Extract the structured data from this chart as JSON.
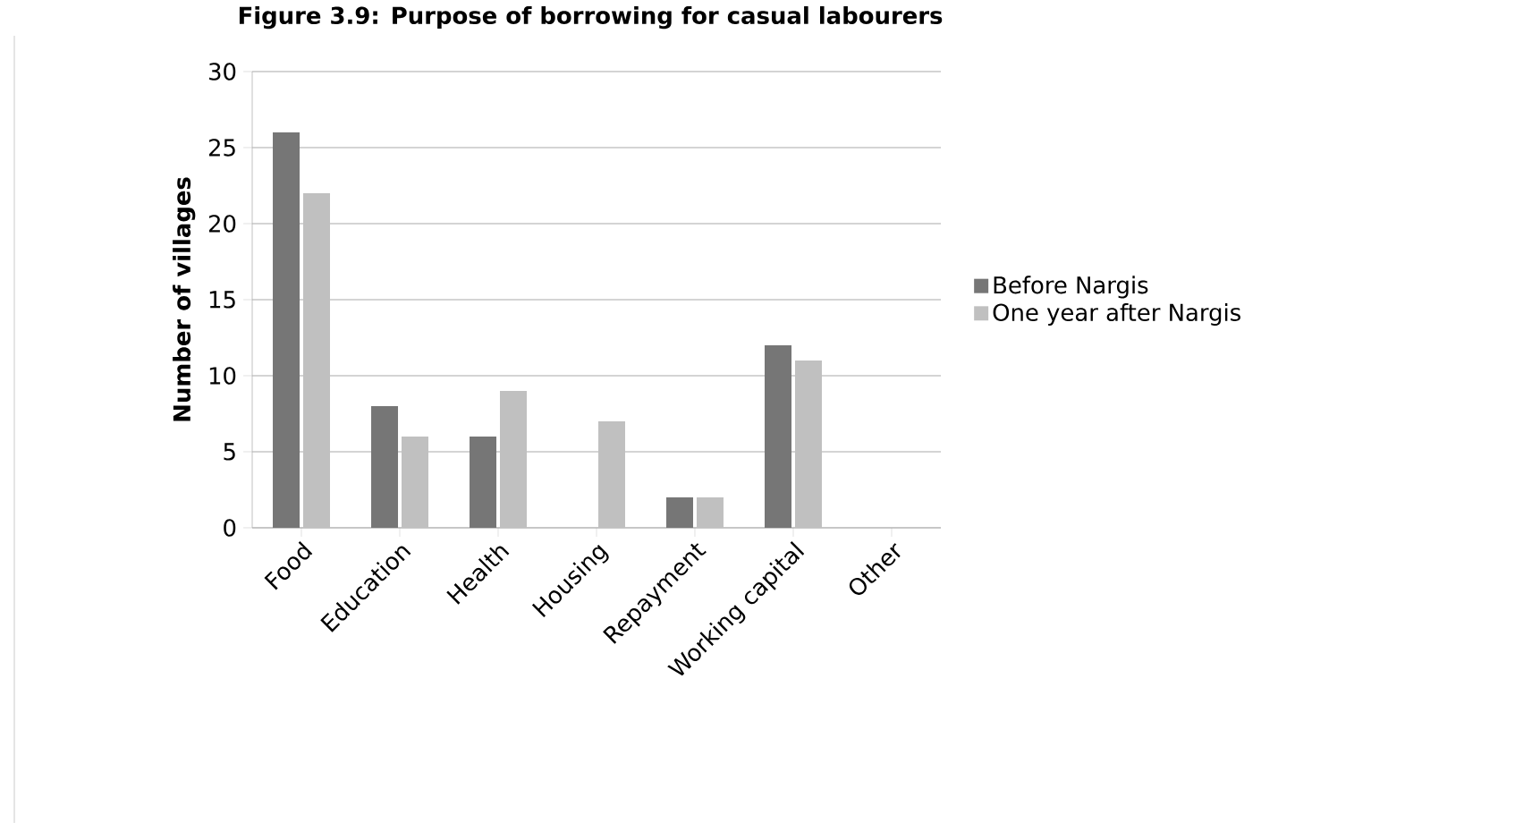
{
  "chart_data": {
    "type": "bar",
    "title": "Figure 3.9: Purpose of borrowing for casual labourers",
    "ylabel": "Number of villages",
    "categories": [
      "Food",
      "Education",
      "Health",
      "Housing",
      "Repayment",
      "Working capital",
      "Other"
    ],
    "series": [
      {
        "name": "Before Nargis",
        "color": "#767676",
        "values": [
          26,
          8,
          6,
          0,
          2,
          12,
          0
        ]
      },
      {
        "name": "One year after Nargis",
        "color": "#c0c0c0",
        "values": [
          22,
          6,
          9,
          7,
          2,
          11,
          0
        ]
      }
    ],
    "ylim": [
      0,
      30
    ],
    "yticks": [
      0,
      5,
      10,
      15,
      20,
      25,
      30
    ],
    "grid": "y",
    "legend": "right"
  }
}
